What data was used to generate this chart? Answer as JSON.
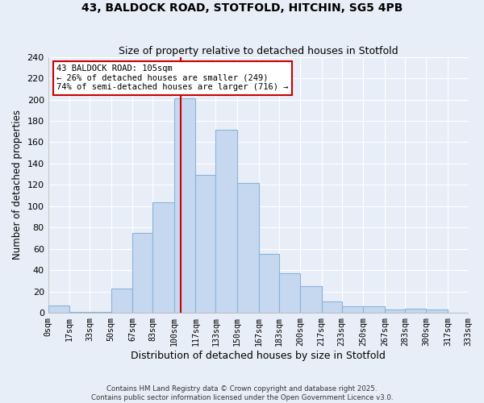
{
  "title": "43, BALDOCK ROAD, STOTFOLD, HITCHIN, SG5 4PB",
  "subtitle": "Size of property relative to detached houses in Stotfold",
  "xlabel": "Distribution of detached houses by size in Stotfold",
  "ylabel": "Number of detached properties",
  "bin_labels": [
    "0sqm",
    "17sqm",
    "33sqm",
    "50sqm",
    "67sqm",
    "83sqm",
    "100sqm",
    "117sqm",
    "133sqm",
    "150sqm",
    "167sqm",
    "183sqm",
    "200sqm",
    "217sqm",
    "233sqm",
    "250sqm",
    "267sqm",
    "283sqm",
    "300sqm",
    "317sqm",
    "333sqm"
  ],
  "bin_edges": [
    0,
    17,
    33,
    50,
    67,
    83,
    100,
    117,
    133,
    150,
    167,
    183,
    200,
    217,
    233,
    250,
    267,
    283,
    300,
    317,
    333
  ],
  "counts": [
    7,
    1,
    1,
    23,
    75,
    104,
    201,
    129,
    172,
    122,
    55,
    37,
    25,
    11,
    6,
    6,
    3,
    4,
    3,
    0
  ],
  "bar_color": "#c5d8f0",
  "bar_edge_color": "#8ab4d8",
  "property_size": 105,
  "vline_color": "#cc0000",
  "annotation_line1": "43 BALDOCK ROAD: 105sqm",
  "annotation_line2": "← 26% of detached houses are smaller (249)",
  "annotation_line3": "74% of semi-detached houses are larger (716) →",
  "annotation_box_color": "#ffffff",
  "annotation_box_edge_color": "#cc0000",
  "ylim": [
    0,
    240
  ],
  "yticks": [
    0,
    20,
    40,
    60,
    80,
    100,
    120,
    140,
    160,
    180,
    200,
    220,
    240
  ],
  "background_color": "#e8eef8",
  "grid_color": "#ffffff",
  "footer_line1": "Contains HM Land Registry data © Crown copyright and database right 2025.",
  "footer_line2": "Contains public sector information licensed under the Open Government Licence v3.0."
}
